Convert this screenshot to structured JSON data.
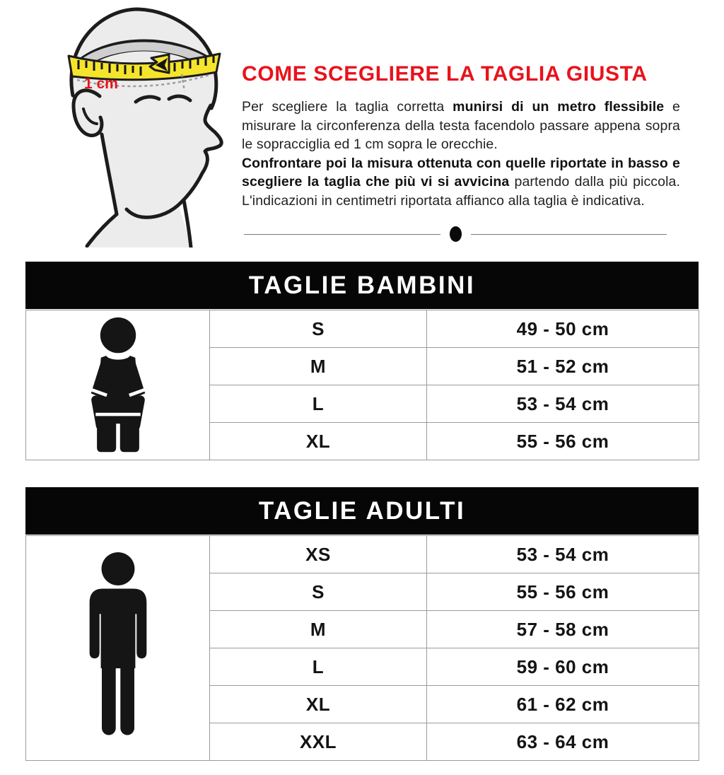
{
  "illustration": {
    "name": "head-with-measuring-tape",
    "tape_label": "1 cm"
  },
  "intro": {
    "title": "COME SCEGLIERE LA TAGLIA GIUSTA",
    "paragraphs": [
      [
        {
          "t": "Per scegliere la taglia corretta ",
          "b": false
        },
        {
          "t": "munirsi di un metro flessibile",
          "b": true
        },
        {
          "t": " e misurare la circonferenza della testa facendolo passare appena sopra le sopracciglia ed 1 cm sopra le orecchie.",
          "b": false
        }
      ],
      [
        {
          "t": "Confrontare poi la misura ottenuta con quelle riportate in basso e scegliere la taglia che più vi si avvicina",
          "b": true
        },
        {
          "t": " partendo dalla più piccola. L'indicazioni in centimetri riportata affianco alla taglia è indicativa.",
          "b": false
        }
      ]
    ]
  },
  "colors": {
    "accent_red": "#e8131d",
    "header_bg": "#060606",
    "table_border": "#9b9b9b",
    "tape_yellow": "#f5e42c",
    "figure_black": "#151515"
  },
  "tables": [
    {
      "title": "TAGLIE BAMBINI",
      "icon": "child-figure-icon",
      "rows": [
        {
          "size": "S",
          "range": "49 - 50 cm"
        },
        {
          "size": "M",
          "range": "51 - 52 cm"
        },
        {
          "size": "L",
          "range": "53 - 54 cm"
        },
        {
          "size": "XL",
          "range": "55 - 56 cm"
        }
      ]
    },
    {
      "title": "TAGLIE ADULTI",
      "icon": "adult-figure-icon",
      "rows": [
        {
          "size": "XS",
          "range": "53 - 54 cm"
        },
        {
          "size": "S",
          "range": "55 - 56 cm"
        },
        {
          "size": "M",
          "range": "57 - 58 cm"
        },
        {
          "size": "L",
          "range": "59 - 60 cm"
        },
        {
          "size": "XL",
          "range": "61 - 62 cm"
        },
        {
          "size": "XXL",
          "range": "63 - 64 cm"
        }
      ]
    }
  ]
}
